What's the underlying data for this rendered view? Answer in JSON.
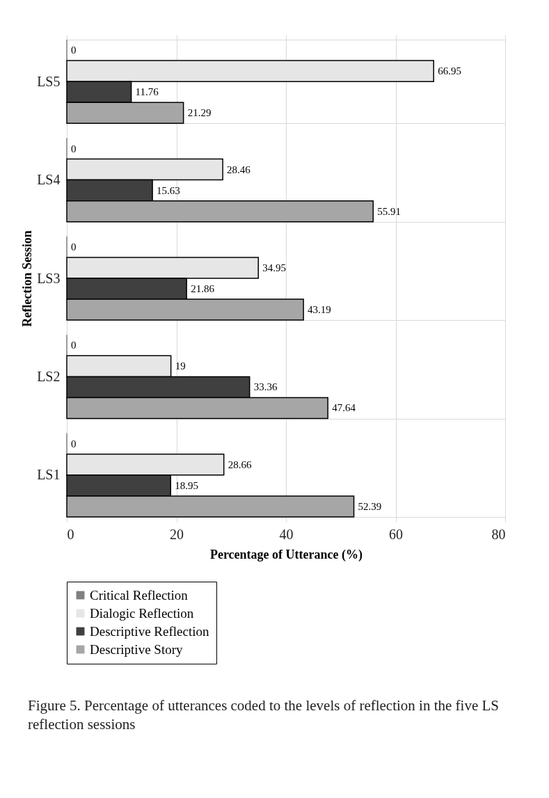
{
  "chart_data": {
    "type": "bar",
    "orientation": "horizontal",
    "xlabel": "Percentage of Utterance (%)",
    "ylabel": "Reflection Session",
    "categories": [
      "LS5",
      "LS4",
      "LS3",
      "LS2",
      "LS1"
    ],
    "series": [
      {
        "name": "Critical Reflection",
        "color": "#808080",
        "values": [
          0,
          0,
          0,
          0,
          0
        ]
      },
      {
        "name": "Dialogic Reflection",
        "color": "#e6e6e6",
        "values": [
          66.95,
          28.46,
          34.95,
          19,
          28.66
        ]
      },
      {
        "name": "Descriptive Reflection",
        "color": "#404040",
        "values": [
          11.76,
          15.63,
          21.86,
          33.36,
          18.95
        ]
      },
      {
        "name": "Descriptive Story",
        "color": "#a6a6a6",
        "values": [
          21.29,
          55.91,
          43.19,
          47.64,
          52.39
        ]
      }
    ],
    "xlim": [
      0,
      80
    ],
    "xticks": [
      0,
      20,
      40,
      60,
      80
    ],
    "grid": true,
    "data_labels": true,
    "legend": "bottom",
    "annotations": [
      "Figure 5. Percentage of utterances coded to the levels of reflection in the five LS reflection sessions"
    ]
  }
}
